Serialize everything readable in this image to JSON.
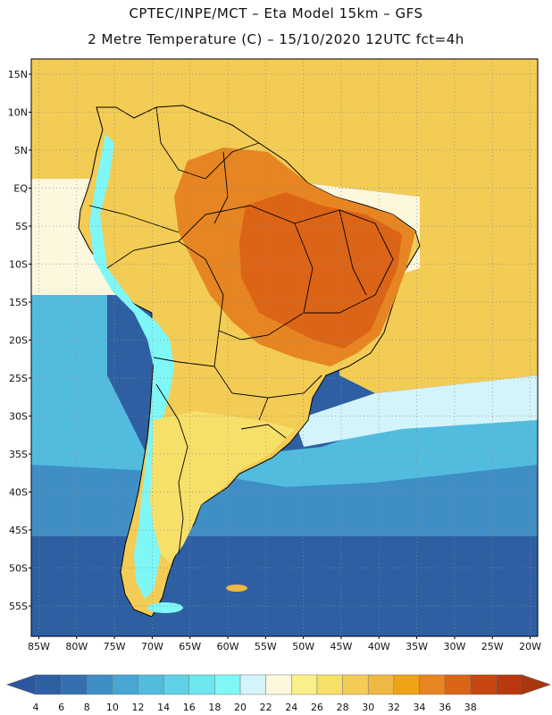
{
  "title_line1": "CPTEC/INPE/MCT –  Eta Model 15km – GFS",
  "title_line2": "2 Metre Temperature (C) – 15/10/2020 12UTC fct=4h",
  "lat_labels": [
    "15N",
    "10N",
    "5N",
    "EQ",
    "5S",
    "10S",
    "15S",
    "20S",
    "25S",
    "30S",
    "35S",
    "40S",
    "45S",
    "50S",
    "55S"
  ],
  "lat_values": [
    15,
    10,
    5,
    0,
    -5,
    -10,
    -15,
    -20,
    -25,
    -30,
    -35,
    -40,
    -45,
    -50,
    -55
  ],
  "lon_labels": [
    "85W",
    "80W",
    "75W",
    "70W",
    "65W",
    "60W",
    "55W",
    "50W",
    "45W",
    "40W",
    "35W",
    "30W",
    "25W",
    "20W"
  ],
  "lon_values": [
    -85,
    -80,
    -75,
    -70,
    -65,
    -60,
    -55,
    -50,
    -45,
    -40,
    -35,
    -30,
    -25,
    -20
  ],
  "legend": {
    "values": [
      "4",
      "6",
      "8",
      "10",
      "12",
      "14",
      "16",
      "18",
      "20",
      "22",
      "24",
      "26",
      "28",
      "30",
      "32",
      "34",
      "36",
      "38"
    ],
    "colors": [
      "#2e5fa3",
      "#3470b0",
      "#3f8ec5",
      "#48a6d3",
      "#52bcde",
      "#5fd0e6",
      "#6ee6ee",
      "#7ff7f7",
      "#d4f4fb",
      "#fdf7de",
      "#faf08a",
      "#f7e06a",
      "#f3cc55",
      "#efb842",
      "#eca315",
      "#e68522",
      "#dc6416",
      "#c8460f",
      "#b8390f"
    ],
    "low_color": "#2b57a0",
    "high_color": "#a9360e"
  },
  "palette": {
    "ocean_deep": "#2e5fa3",
    "ocean_mid": "#3f8ec5",
    "ocean_light": "#52bcde",
    "ocean_cyan": "#5fd0e6",
    "ocean_warm": "#d4f4fb",
    "ocean_tropical": "#f3cc55",
    "ocean_pale": "#fdf7de",
    "land_base": "#f3cc55",
    "land_warm": "#efb842",
    "land_hot": "#e68522",
    "land_hottest": "#dc6416",
    "andes_cold": "#7ff7f7",
    "south_land": "#f7e06a",
    "border": "#000000",
    "grid": "#8a8a8a"
  },
  "geo": {
    "lon_min": -86,
    "lon_max": -19,
    "lat_min": -59,
    "lat_max": 17
  }
}
